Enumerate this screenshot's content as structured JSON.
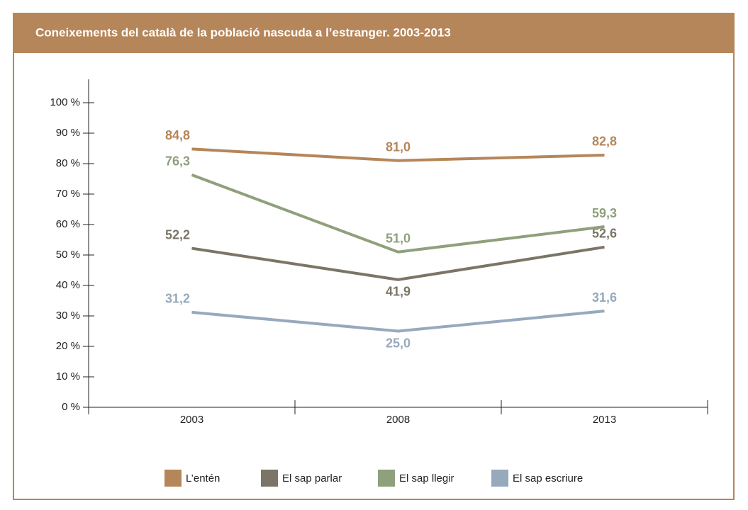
{
  "chart_data": {
    "type": "line",
    "title": "Coneixements del català de la població nascuda a l’estranger. 2003-2013",
    "categories": [
      "2003",
      "2008",
      "2013"
    ],
    "series": [
      {
        "name": "L’entén",
        "color": "#b5865a",
        "values": [
          84.8,
          81.0,
          82.8
        ],
        "value_labels": [
          "84,8",
          "81,0",
          "82,8"
        ]
      },
      {
        "name": "El sap parlar",
        "color": "#7a7566",
        "values": [
          52.2,
          41.9,
          52.6
        ],
        "value_labels": [
          "52,2",
          "41,9",
          "52,6"
        ]
      },
      {
        "name": "El sap llegir",
        "color": "#8fa07c",
        "values": [
          76.3,
          51.0,
          59.3
        ],
        "value_labels": [
          "76,3",
          "51,0",
          "59,3"
        ]
      },
      {
        "name": "El sap escriure",
        "color": "#97a9bd",
        "values": [
          31.2,
          25.0,
          31.6
        ],
        "value_labels": [
          "31,2",
          "25,0",
          "31,6"
        ]
      }
    ],
    "ylim": [
      0,
      100
    ],
    "yticks": [
      {
        "value": 0,
        "label": "0 %"
      },
      {
        "value": 10,
        "label": "10 %"
      },
      {
        "value": 20,
        "label": "20 %"
      },
      {
        "value": 30,
        "label": "30 %"
      },
      {
        "value": 40,
        "label": "40 %"
      },
      {
        "value": 50,
        "label": "50 %"
      },
      {
        "value": 60,
        "label": "60 %"
      },
      {
        "value": 70,
        "label": "70 %"
      },
      {
        "value": 80,
        "label": "80 %"
      },
      {
        "value": 90,
        "label": "90 %"
      },
      {
        "value": 100,
        "label": "100 %"
      }
    ],
    "legend": "bottom"
  }
}
